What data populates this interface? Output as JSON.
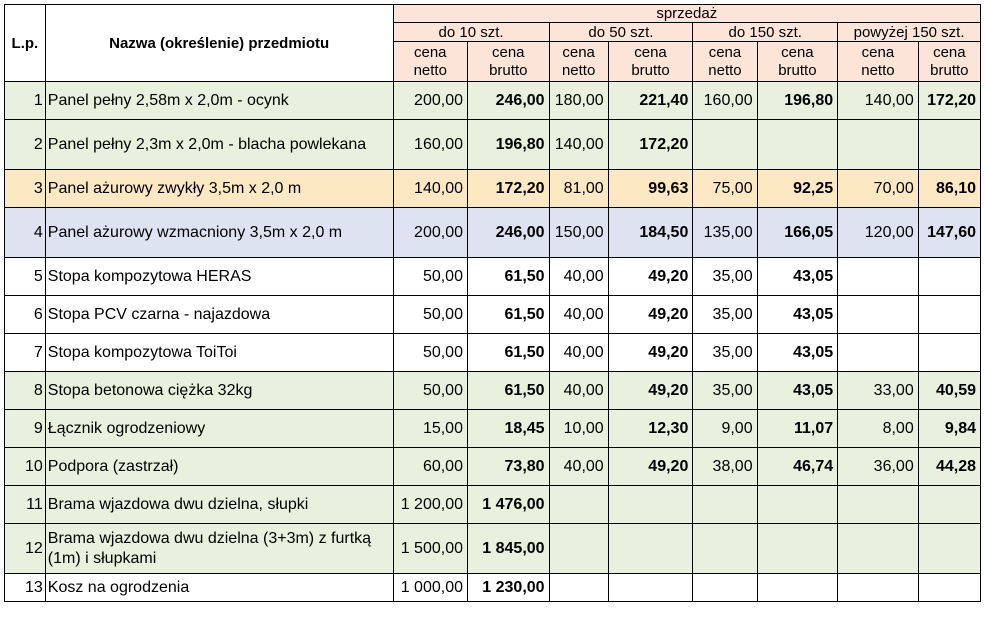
{
  "header": {
    "lp": "L.p.",
    "name": "Nazwa (określenie) przedmiotu",
    "sale": "sprzedaż",
    "ranges": [
      "do 10 szt.",
      "do 50 szt.",
      "do 150 szt.",
      "powyżej 150 szt."
    ],
    "netto_line1": "cena",
    "netto_line2": "netto",
    "brutto_line1": "cena",
    "brutto_line2": "brutto"
  },
  "rows": [
    {
      "lp": "1",
      "name": "Panel pełny 2,58m x 2,0m - ocynk",
      "c": [
        "200,00",
        "246,00",
        "180,00",
        "221,40",
        "160,00",
        "196,80",
        "140,00",
        "172,20"
      ]
    },
    {
      "lp": "2",
      "name": "Panel pełny 2,3m x 2,0m - blacha powlekana",
      "c": [
        "160,00",
        "196,80",
        "140,00",
        "172,20",
        "",
        "",
        "",
        ""
      ]
    },
    {
      "lp": "3",
      "name": "Panel ażurowy zwykły 3,5m x 2,0 m",
      "c": [
        "140,00",
        "172,20",
        "81,00",
        "99,63",
        "75,00",
        "92,25",
        "70,00",
        "86,10"
      ]
    },
    {
      "lp": "4",
      "name": "Panel ażurowy wzmacniony 3,5m x 2,0 m",
      "c": [
        "200,00",
        "246,00",
        "150,00",
        "184,50",
        "135,00",
        "166,05",
        "120,00",
        "147,60"
      ]
    },
    {
      "lp": "5",
      "name": "Stopa kompozytowa HERAS",
      "c": [
        "50,00",
        "61,50",
        "40,00",
        "49,20",
        "35,00",
        "43,05",
        "",
        ""
      ]
    },
    {
      "lp": "6",
      "name": "Stopa PCV czarna - najazdowa",
      "c": [
        "50,00",
        "61,50",
        "40,00",
        "49,20",
        "35,00",
        "43,05",
        "",
        ""
      ]
    },
    {
      "lp": "7",
      "name": "Stopa kompozytowa ToiToi",
      "c": [
        "50,00",
        "61,50",
        "40,00",
        "49,20",
        "35,00",
        "43,05",
        "",
        ""
      ]
    },
    {
      "lp": "8",
      "name": "Stopa betonowa ciężka 32kg",
      "c": [
        "50,00",
        "61,50",
        "40,00",
        "49,20",
        "35,00",
        "43,05",
        "33,00",
        "40,59"
      ]
    },
    {
      "lp": "9",
      "name": "Łącznik ogrodzeniowy",
      "c": [
        "15,00",
        "18,45",
        "10,00",
        "12,30",
        "9,00",
        "11,07",
        "8,00",
        "9,84"
      ]
    },
    {
      "lp": "10",
      "name": "Podpora (zastrzał)",
      "c": [
        "60,00",
        "73,80",
        "40,00",
        "49,20",
        "38,00",
        "46,74",
        "36,00",
        "44,28"
      ]
    },
    {
      "lp": "11",
      "name": "Brama wjazdowa dwu dzielna, słupki",
      "c": [
        "1 200,00",
        "1 476,00",
        "",
        "",
        "",
        "",
        "",
        ""
      ]
    },
    {
      "lp": "12",
      "name": "Brama wjazdowa dwu dzielna (3+3m) z furtką (1m) i słupkami",
      "c": [
        "1 500,00",
        "1 845,00",
        "",
        "",
        "",
        "",
        "",
        ""
      ]
    },
    {
      "lp": "13",
      "name": "Kosz na ogrodzenia",
      "c": [
        "1 000,00",
        "1 230,00",
        "",
        "",
        "",
        "",
        "",
        ""
      ]
    }
  ],
  "colors": {
    "green": "#e9f0dd",
    "orange": "#fde8c4",
    "blue": "#dde3f1",
    "header": "#fde4d8"
  }
}
